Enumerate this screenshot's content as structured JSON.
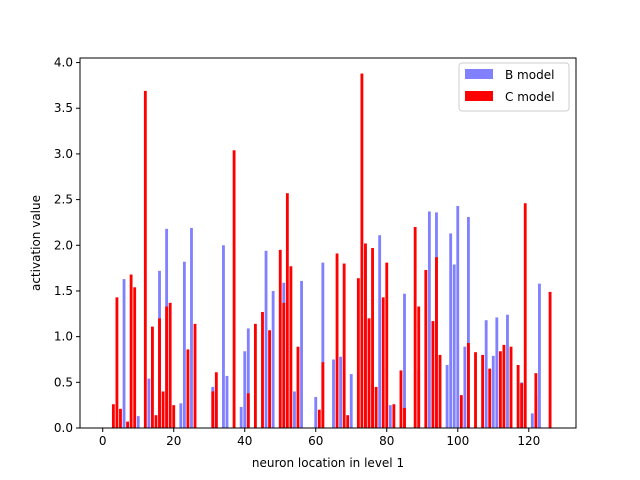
{
  "chart_data": {
    "type": "bar",
    "xlabel": "neuron location in level 1",
    "ylabel": "activation value",
    "xlim": [
      -6.4,
      133.3
    ],
    "ylim": [
      0,
      4.05
    ],
    "xticks": [
      0,
      20,
      40,
      60,
      80,
      100,
      120
    ],
    "yticks": [
      0.0,
      0.5,
      1.0,
      1.5,
      2.0,
      2.5,
      3.0,
      3.5,
      4.0
    ],
    "ytick_labels": [
      "0.0",
      "0.5",
      "1.0",
      "1.5",
      "2.0",
      "2.5",
      "3.0",
      "3.5",
      "4.0"
    ],
    "bar_width": 0.8,
    "legend_position": "top-right",
    "series": [
      {
        "name": "B model",
        "color": "#4b4bff",
        "opacity": 0.7,
        "points": [
          [
            6,
            1.63
          ],
          [
            10,
            0.13
          ],
          [
            13,
            0.54
          ],
          [
            16,
            1.72
          ],
          [
            18,
            2.18
          ],
          [
            22,
            0.27
          ],
          [
            23,
            1.82
          ],
          [
            25,
            2.19
          ],
          [
            31,
            0.45
          ],
          [
            32,
            0.31
          ],
          [
            34,
            2.0
          ],
          [
            35,
            0.57
          ],
          [
            39,
            0.23
          ],
          [
            40,
            0.84
          ],
          [
            41,
            1.09
          ],
          [
            46,
            1.94
          ],
          [
            48,
            1.5
          ],
          [
            51,
            1.59
          ],
          [
            54,
            0.4
          ],
          [
            56,
            1.61
          ],
          [
            60,
            0.34
          ],
          [
            62,
            1.81
          ],
          [
            65,
            0.75
          ],
          [
            67,
            0.78
          ],
          [
            70,
            0.59
          ],
          [
            74,
            1.95
          ],
          [
            76,
            0.49
          ],
          [
            78,
            2.11
          ],
          [
            81,
            0.25
          ],
          [
            85,
            1.47
          ],
          [
            89,
            0.63
          ],
          [
            92,
            2.37
          ],
          [
            94,
            2.36
          ],
          [
            97,
            0.69
          ],
          [
            98,
            2.13
          ],
          [
            99,
            1.79
          ],
          [
            100,
            2.43
          ],
          [
            102,
            0.89
          ],
          [
            103,
            2.31
          ],
          [
            108,
            1.18
          ],
          [
            110,
            0.79
          ],
          [
            111,
            1.21
          ],
          [
            114,
            1.24
          ],
          [
            118,
            0.5
          ],
          [
            121,
            0.16
          ],
          [
            122,
            0.35
          ],
          [
            123,
            1.58
          ]
        ]
      },
      {
        "name": "C model",
        "color": "#ff0000",
        "opacity": 1.0,
        "points": [
          [
            3,
            0.26
          ],
          [
            4,
            1.43
          ],
          [
            5,
            0.21
          ],
          [
            7,
            0.07
          ],
          [
            8,
            1.68
          ],
          [
            9,
            1.54
          ],
          [
            12,
            3.69
          ],
          [
            14,
            1.11
          ],
          [
            15,
            0.14
          ],
          [
            16,
            1.2
          ],
          [
            17,
            0.4
          ],
          [
            18,
            1.33
          ],
          [
            19,
            1.37
          ],
          [
            20,
            0.25
          ],
          [
            24,
            0.86
          ],
          [
            26,
            1.14
          ],
          [
            31,
            0.4
          ],
          [
            32,
            0.61
          ],
          [
            37,
            3.04
          ],
          [
            41,
            0.38
          ],
          [
            43,
            1.14
          ],
          [
            45,
            1.27
          ],
          [
            47,
            1.07
          ],
          [
            50,
            1.95
          ],
          [
            51,
            1.37
          ],
          [
            52,
            2.57
          ],
          [
            53,
            1.77
          ],
          [
            55,
            0.89
          ],
          [
            61,
            0.2
          ],
          [
            62,
            0.72
          ],
          [
            66,
            1.91
          ],
          [
            68,
            1.8
          ],
          [
            69,
            0.14
          ],
          [
            72,
            1.64
          ],
          [
            73,
            3.88
          ],
          [
            74,
            2.02
          ],
          [
            75,
            1.2
          ],
          [
            76,
            1.97
          ],
          [
            77,
            0.45
          ],
          [
            79,
            1.43
          ],
          [
            80,
            1.81
          ],
          [
            82,
            0.26
          ],
          [
            84,
            0.63
          ],
          [
            85,
            0.22
          ],
          [
            88,
            2.2
          ],
          [
            89,
            1.33
          ],
          [
            91,
            1.73
          ],
          [
            93,
            1.17
          ],
          [
            94,
            1.87
          ],
          [
            95,
            0.8
          ],
          [
            101,
            0.36
          ],
          [
            103,
            0.93
          ],
          [
            105,
            0.83
          ],
          [
            107,
            0.8
          ],
          [
            109,
            0.65
          ],
          [
            112,
            0.84
          ],
          [
            113,
            0.91
          ],
          [
            115,
            0.89
          ],
          [
            117,
            0.69
          ],
          [
            118,
            0.49
          ],
          [
            119,
            2.46
          ],
          [
            122,
            0.6
          ],
          [
            126,
            1.49
          ]
        ]
      }
    ]
  }
}
